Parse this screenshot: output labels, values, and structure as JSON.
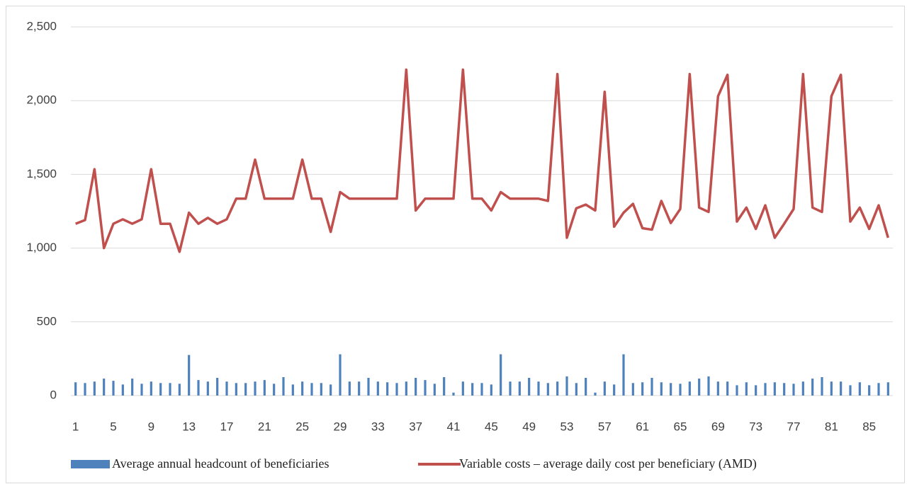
{
  "chart_data": {
    "type": "bar",
    "categories": [
      "1",
      null,
      null,
      null,
      "5",
      null,
      null,
      null,
      "9",
      null,
      null,
      null,
      "13",
      null,
      null,
      null,
      "17",
      null,
      null,
      null,
      "21",
      null,
      null,
      null,
      "25",
      null,
      null,
      null,
      "29",
      null,
      null,
      null,
      "33",
      null,
      null,
      null,
      "37",
      null,
      null,
      null,
      "41",
      null,
      null,
      null,
      "45",
      null,
      null,
      null,
      "49",
      null,
      null,
      null,
      "53",
      null,
      null,
      null,
      "57",
      null,
      null,
      null,
      "61",
      null,
      null,
      null,
      "65",
      null,
      null,
      null,
      "69",
      null,
      null,
      null,
      "73",
      null,
      null,
      null,
      "77",
      null,
      null,
      null,
      "81",
      null,
      null,
      null,
      "85",
      null,
      null
    ],
    "series": [
      {
        "name": "Average annual headcount of beneficiaries",
        "type": "bar",
        "color": "#4f81bd",
        "values": [
          90,
          85,
          95,
          115,
          100,
          75,
          115,
          80,
          95,
          85,
          85,
          80,
          275,
          105,
          95,
          120,
          95,
          85,
          85,
          95,
          105,
          80,
          125,
          75,
          95,
          85,
          85,
          75,
          280,
          95,
          95,
          120,
          95,
          90,
          85,
          95,
          120,
          105,
          80,
          125,
          20,
          95,
          85,
          85,
          75,
          280,
          95,
          95,
          120,
          95,
          85,
          95,
          130,
          85,
          120,
          20,
          95,
          75,
          280,
          85,
          90,
          120,
          90,
          85,
          80,
          95,
          115,
          130,
          95,
          95,
          70,
          90,
          70,
          85,
          90,
          85,
          80,
          95,
          115,
          125,
          95,
          95,
          70,
          90,
          70,
          85,
          90
        ]
      },
      {
        "name": "Variable costs – average daily cost per beneficiary (AMD)",
        "type": "line",
        "color": "#c0504d",
        "values": [
          1165,
          1190,
          1535,
          1000,
          1165,
          1195,
          1165,
          1195,
          1535,
          1165,
          1165,
          975,
          1240,
          1165,
          1205,
          1165,
          1195,
          1335,
          1335,
          1600,
          1335,
          1335,
          1335,
          1335,
          1600,
          1335,
          1335,
          1110,
          1380,
          1335,
          1335,
          1335,
          1335,
          1335,
          1335,
          2210,
          1255,
          1335,
          1335,
          1335,
          1335,
          2210,
          1335,
          1335,
          1255,
          1380,
          1335,
          1335,
          1335,
          1335,
          1320,
          2180,
          1070,
          1270,
          1295,
          1255,
          2060,
          1145,
          1240,
          1300,
          1135,
          1125,
          1320,
          1170,
          1265,
          2180,
          1275,
          1245,
          2030,
          2175,
          1180,
          1275,
          1130,
          1290,
          1070,
          1165,
          1265,
          2180,
          1275,
          1245,
          2030,
          2175,
          1180,
          1275,
          1130,
          1290,
          1070
        ]
      }
    ],
    "ylim": [
      0,
      2500
    ],
    "yticks": [
      0,
      500,
      {
        "value": 1000,
        "label": "1,000"
      },
      {
        "value": 1500,
        "label": "1,500"
      },
      {
        "value": 2000,
        "label": "2,000"
      },
      {
        "value": 2500,
        "label": "2,500"
      }
    ],
    "grid": true,
    "legend": "bottom"
  }
}
